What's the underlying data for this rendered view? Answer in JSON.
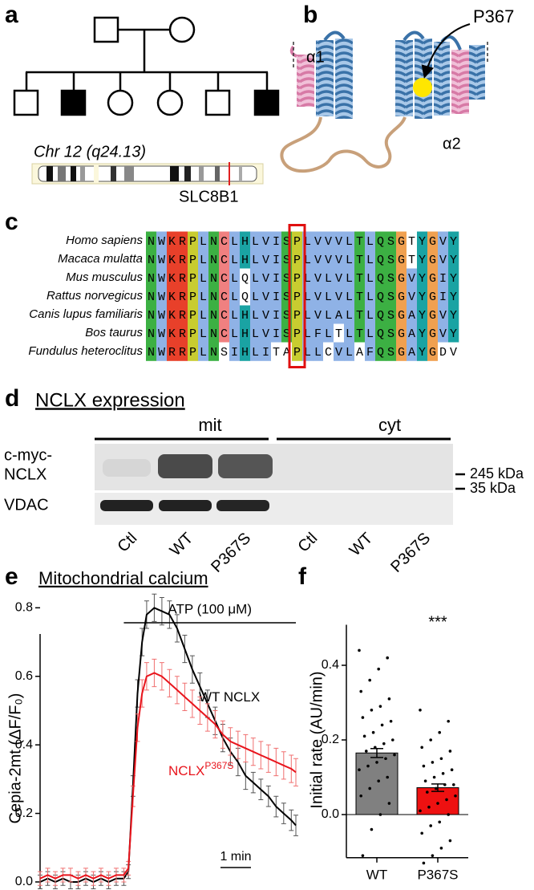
{
  "panels": {
    "a": {
      "label": "a",
      "chromosome": "Chr 12 (q24.13)",
      "gene": "SLC8B1"
    },
    "b": {
      "label": "b",
      "residue": "P367",
      "helices": [
        "α1",
        "α2"
      ]
    },
    "c": {
      "label": "c",
      "alignment": [
        {
          "species": "Homo sapiens",
          "sequence": "NWKRPLNCLHLVISPLVVVLTLQSGTYGVY"
        },
        {
          "species": "Macaca mulatta",
          "sequence": "NWKRPLNCLHLVISPLVVVLTLQSGTYGVY"
        },
        {
          "species": "Mus musculus",
          "sequence": "NWKRPLNCLQLVISPLVLVLTLQSGVYGIY"
        },
        {
          "species": "Rattus norvegicus",
          "sequence": "NWKRPLNCLQLVISPLVLVLTLQSGVYGIY"
        },
        {
          "species": "Canis lupus familiaris",
          "sequence": "NWKRPLNCLHLVISPLVLALTLQSGAYGVY"
        },
        {
          "species": "Bos taurus",
          "sequence": "NWKRPLNCLHLVISPLFLTLTLQSGAYGVY"
        },
        {
          "species": "Fundulus heteroclitus",
          "sequence": "NWRRPLNSIHLITAPLLCVLAFQSGAYGDV"
        }
      ]
    },
    "d": {
      "label": "d",
      "title": "NCLX expression",
      "groups": [
        "mit",
        "cyt"
      ],
      "row_labels": [
        [
          "c-myc-",
          "NCLX"
        ],
        [
          "VDAC"
        ]
      ],
      "markers": [
        "245 kDa",
        "35 kDa"
      ],
      "lanes": [
        "Ctl",
        "WT",
        "P367S",
        "Ctl",
        "WT",
        "P367S"
      ]
    }
  },
  "chart_data": [
    {
      "type": "line",
      "panel_label": "e",
      "title": "Mitochondrial calcium",
      "ylabel": "Cepia-2mt (ΔF/F₀)",
      "x": [
        0,
        0.25,
        0.5,
        0.75,
        1,
        1.25,
        1.5,
        1.75,
        2,
        2.25,
        2.5,
        2.75,
        2.9,
        3.05,
        3.2,
        3.35,
        3.5,
        3.75,
        4,
        4.25,
        4.5,
        4.75,
        5,
        5.25,
        5.5,
        5.75,
        6,
        6.25,
        6.5,
        6.75,
        7,
        7.25,
        7.5,
        7.75,
        8,
        8.25,
        8.4
      ],
      "series": [
        {
          "name": "WT NCLX",
          "color": "#000000",
          "values": [
            0.0,
            0.01,
            0.0,
            0.01,
            0.0,
            0.0,
            0.01,
            0.0,
            0.01,
            0.0,
            0.01,
            0.01,
            0.03,
            0.28,
            0.55,
            0.7,
            0.78,
            0.8,
            0.79,
            0.78,
            0.74,
            0.68,
            0.62,
            0.57,
            0.52,
            0.47,
            0.42,
            0.38,
            0.35,
            0.31,
            0.29,
            0.27,
            0.25,
            0.22,
            0.2,
            0.18,
            0.165
          ],
          "errors": [
            0.02,
            0.02,
            0.02,
            0.02,
            0.02,
            0.02,
            0.02,
            0.02,
            0.02,
            0.02,
            0.02,
            0.02,
            0.02,
            0.03,
            0.04,
            0.04,
            0.04,
            0.04,
            0.04,
            0.04,
            0.04,
            0.04,
            0.04,
            0.04,
            0.04,
            0.04,
            0.04,
            0.04,
            0.04,
            0.04,
            0.03,
            0.03,
            0.03,
            0.03,
            0.03,
            0.03,
            0.03
          ]
        },
        {
          "name": "NCLX",
          "name_superscript": "P367S",
          "color": "#e8141c",
          "values": [
            0.01,
            0.02,
            0.01,
            0.02,
            0.02,
            0.01,
            0.02,
            0.01,
            0.02,
            0.01,
            0.02,
            0.02,
            0.04,
            0.25,
            0.45,
            0.55,
            0.6,
            0.61,
            0.6,
            0.58,
            0.56,
            0.54,
            0.52,
            0.5,
            0.48,
            0.46,
            0.43,
            0.41,
            0.4,
            0.39,
            0.38,
            0.37,
            0.36,
            0.35,
            0.34,
            0.33,
            0.32
          ],
          "errors": [
            0.02,
            0.02,
            0.02,
            0.02,
            0.02,
            0.02,
            0.02,
            0.02,
            0.02,
            0.02,
            0.02,
            0.02,
            0.02,
            0.03,
            0.04,
            0.04,
            0.04,
            0.04,
            0.04,
            0.04,
            0.04,
            0.04,
            0.04,
            0.04,
            0.04,
            0.04,
            0.04,
            0.04,
            0.04,
            0.04,
            0.04,
            0.04,
            0.04,
            0.04,
            0.04,
            0.04,
            0.04
          ]
        }
      ],
      "xlim": [
        0,
        8.4
      ],
      "ylim": [
        -0.02,
        0.85
      ],
      "yticks": [
        {
          "value": 0,
          "label": "0.0"
        },
        0.2,
        0.4,
        0.6,
        0.8
      ],
      "annotations": [
        {
          "text": "ATP (100 μM)",
          "x_start": 2.75,
          "x_end": 8.4
        }
      ],
      "scale_bar": {
        "text": "1 min",
        "length": 1
      }
    },
    {
      "type": "bar",
      "panel_label": "f",
      "ylabel": "Initial rate (AU/min)",
      "categories": [
        "WT",
        "P367S"
      ],
      "colors": [
        "#808080",
        "#ee1111"
      ],
      "values": [
        0.165,
        0.072
      ],
      "errors": [
        0.012,
        0.01
      ],
      "points": [
        [
          0.44,
          0.42,
          0.39,
          0.36,
          0.33,
          0.31,
          0.29,
          0.28,
          0.26,
          0.25,
          0.24,
          0.22,
          0.21,
          0.2,
          0.19,
          0.18,
          0.17,
          0.16,
          0.15,
          0.14,
          0.13,
          0.12,
          0.1,
          0.09,
          0.07,
          0.05,
          0.03,
          0.0,
          -0.04,
          -0.11
        ],
        [
          0.28,
          0.25,
          0.22,
          0.2,
          0.18,
          0.17,
          0.15,
          0.14,
          0.13,
          0.12,
          0.11,
          0.1,
          0.09,
          0.08,
          0.08,
          0.07,
          0.06,
          0.05,
          0.04,
          0.03,
          0.02,
          0.01,
          0.0,
          -0.02,
          -0.03,
          -0.05,
          -0.07,
          -0.09,
          -0.11,
          -0.13
        ]
      ],
      "ylim": [
        -0.12,
        0.5
      ],
      "yticks": [
        {
          "value": 0,
          "label": "0.0"
        },
        0.2,
        0.4
      ],
      "annotation": "***"
    }
  ]
}
